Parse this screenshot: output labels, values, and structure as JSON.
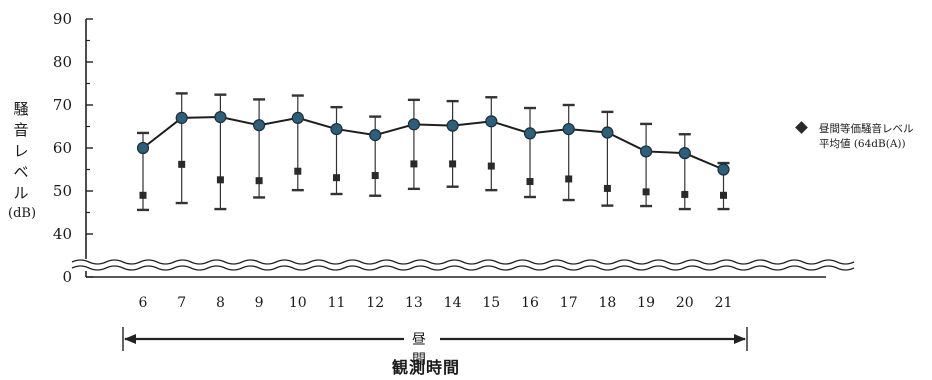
{
  "chart_data": {
    "type": "line",
    "ylabel_chars": [
      "騒",
      "音",
      "レ",
      "ベ",
      "ル"
    ],
    "ylabel_unit": "(dB)",
    "yticks": [
      0,
      40,
      50,
      60,
      70,
      80,
      90
    ],
    "ylim": [
      0,
      90
    ],
    "axis_break": {
      "from": 0,
      "to": 40
    },
    "x": [
      6,
      7,
      8,
      9,
      10,
      11,
      12,
      13,
      14,
      15,
      16,
      17,
      18,
      19,
      20,
      21
    ],
    "xlabel": "観測時間",
    "series": [
      {
        "name": "昼間等価騒音レベル",
        "marker": "circle",
        "values": [
          60.0,
          67.0,
          67.2,
          65.3,
          67.0,
          64.4,
          63.0,
          65.5,
          65.2,
          66.2,
          63.4,
          64.4,
          63.6,
          59.2,
          58.8,
          55.0
        ]
      },
      {
        "name": "",
        "marker": "square",
        "values": [
          49.0,
          56.2,
          52.6,
          52.4,
          54.6,
          53.1,
          53.6,
          56.3,
          56.3,
          55.8,
          52.2,
          52.8,
          50.6,
          49.8,
          49.2,
          49.0
        ]
      }
    ],
    "error_bars": {
      "upper": [
        63.5,
        72.7,
        72.4,
        71.3,
        72.2,
        69.5,
        67.3,
        71.2,
        70.9,
        71.8,
        69.3,
        70.0,
        68.4,
        65.6,
        63.2,
        56.5
      ],
      "lower": [
        45.6,
        47.2,
        45.8,
        48.5,
        50.2,
        49.3,
        48.9,
        50.5,
        51.0,
        50.2,
        48.6,
        47.9,
        46.6,
        46.5,
        45.8,
        45.8
      ]
    },
    "legend": {
      "line1": "昼間等価騒音レベル",
      "line2": "平均値 (64dB(A))",
      "placement": "right"
    },
    "annotation": {
      "label": "昼 間",
      "range": "daytime"
    },
    "grid": false,
    "colors": {
      "line": "#1e1e1e",
      "marker_fill": "#2f5f78",
      "marker_edge": "#1a2e3a",
      "square": "#2a2a2a"
    }
  }
}
